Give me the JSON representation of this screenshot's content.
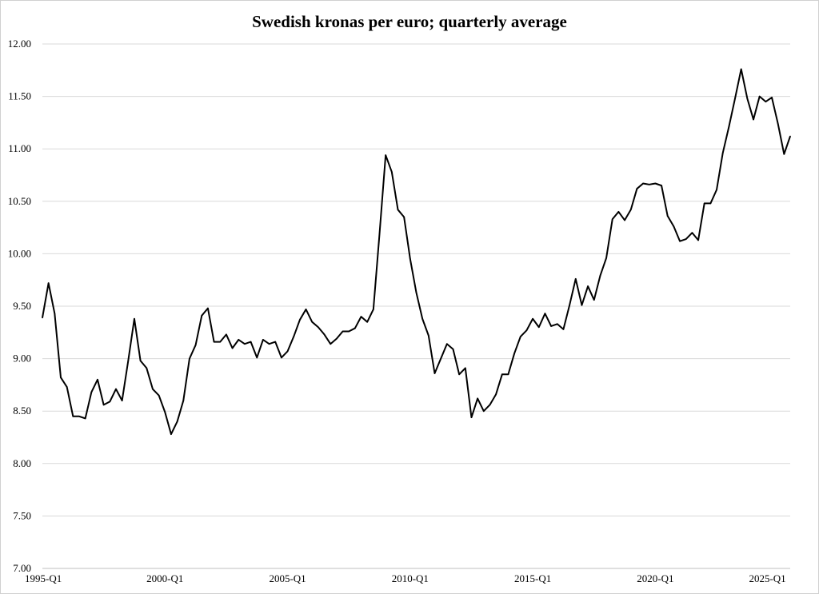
{
  "chart_data": {
    "type": "line",
    "title": "Swedish kronas per euro; quarterly average",
    "xlabel": "",
    "ylabel": "",
    "ylim": [
      7.0,
      12.0
    ],
    "yticks": [
      "7.00",
      "7.50",
      "8.00",
      "8.50",
      "9.00",
      "9.50",
      "10.00",
      "10.50",
      "11.00",
      "11.50",
      "12.00"
    ],
    "xticks": [
      "1995-Q1",
      "2000-Q1",
      "2005-Q1",
      "2010-Q1",
      "2015-Q1",
      "2020-Q1",
      "2025-Q1"
    ],
    "grid": "horizontal",
    "line_color": "#000000",
    "x": [
      "1995-Q1",
      "1995-Q2",
      "1995-Q3",
      "1995-Q4",
      "1996-Q1",
      "1996-Q2",
      "1996-Q3",
      "1996-Q4",
      "1997-Q1",
      "1997-Q2",
      "1997-Q3",
      "1997-Q4",
      "1998-Q1",
      "1998-Q2",
      "1998-Q3",
      "1998-Q4",
      "1999-Q1",
      "1999-Q2",
      "1999-Q3",
      "1999-Q4",
      "2000-Q1",
      "2000-Q2",
      "2000-Q3",
      "2000-Q4",
      "2001-Q1",
      "2001-Q2",
      "2001-Q3",
      "2001-Q4",
      "2002-Q1",
      "2002-Q2",
      "2002-Q3",
      "2002-Q4",
      "2003-Q1",
      "2003-Q2",
      "2003-Q3",
      "2003-Q4",
      "2004-Q1",
      "2004-Q2",
      "2004-Q3",
      "2004-Q4",
      "2005-Q1",
      "2005-Q2",
      "2005-Q3",
      "2005-Q4",
      "2006-Q1",
      "2006-Q2",
      "2006-Q3",
      "2006-Q4",
      "2007-Q1",
      "2007-Q2",
      "2007-Q3",
      "2007-Q4",
      "2008-Q1",
      "2008-Q2",
      "2008-Q3",
      "2008-Q4",
      "2009-Q1",
      "2009-Q2",
      "2009-Q3",
      "2009-Q4",
      "2010-Q1",
      "2010-Q2",
      "2010-Q3",
      "2010-Q4",
      "2011-Q1",
      "2011-Q2",
      "2011-Q3",
      "2011-Q4",
      "2012-Q1",
      "2012-Q2",
      "2012-Q3",
      "2012-Q4",
      "2013-Q1",
      "2013-Q2",
      "2013-Q3",
      "2013-Q4",
      "2014-Q1",
      "2014-Q2",
      "2014-Q3",
      "2014-Q4",
      "2015-Q1",
      "2015-Q2",
      "2015-Q3",
      "2015-Q4",
      "2016-Q1",
      "2016-Q2",
      "2016-Q3",
      "2016-Q4",
      "2017-Q1",
      "2017-Q2",
      "2017-Q3",
      "2017-Q4",
      "2018-Q1",
      "2018-Q2",
      "2018-Q3",
      "2018-Q4",
      "2019-Q1",
      "2019-Q2",
      "2019-Q3",
      "2019-Q4",
      "2020-Q1",
      "2020-Q2",
      "2020-Q3",
      "2020-Q4",
      "2021-Q1",
      "2021-Q2",
      "2021-Q3",
      "2021-Q4",
      "2022-Q1",
      "2022-Q2",
      "2022-Q3",
      "2022-Q4",
      "2023-Q1",
      "2023-Q2",
      "2023-Q3",
      "2023-Q4",
      "2024-Q1",
      "2024-Q2",
      "2024-Q3",
      "2024-Q4",
      "2025-Q1",
      "2025-Q2",
      "2025-Q3"
    ],
    "series": [
      {
        "values": [
          9.39,
          9.72,
          9.43,
          8.82,
          8.73,
          8.45,
          8.45,
          8.43,
          8.68,
          8.8,
          8.56,
          8.59,
          8.71,
          8.6,
          8.98,
          9.38,
          8.98,
          8.91,
          8.71,
          8.65,
          8.49,
          8.28,
          8.4,
          8.6,
          9.0,
          9.13,
          9.41,
          9.48,
          9.16,
          9.16,
          9.23,
          9.1,
          9.18,
          9.14,
          9.16,
          9.01,
          9.18,
          9.14,
          9.16,
          9.01,
          9.07,
          9.21,
          9.37,
          9.47,
          9.35,
          9.3,
          9.23,
          9.14,
          9.19,
          9.26,
          9.26,
          9.29,
          9.4,
          9.35,
          9.47,
          10.19,
          10.94,
          10.78,
          10.42,
          10.35,
          9.95,
          9.63,
          9.38,
          9.22,
          8.86,
          9.0,
          9.14,
          9.09,
          8.85,
          8.91,
          8.44,
          8.62,
          8.5,
          8.56,
          8.66,
          8.85,
          8.85,
          9.05,
          9.21,
          9.27,
          9.38,
          9.3,
          9.43,
          9.31,
          9.33,
          9.28,
          9.51,
          9.76,
          9.51,
          9.69,
          9.56,
          9.79,
          9.96,
          10.33,
          10.4,
          10.32,
          10.42,
          10.62,
          10.67,
          10.66,
          10.67,
          10.65,
          10.36,
          10.26,
          10.12,
          10.14,
          10.2,
          10.13,
          10.48,
          10.48,
          10.61,
          10.96,
          11.21,
          11.48,
          11.76,
          11.48,
          11.28,
          11.5,
          11.45,
          11.49,
          11.24,
          10.95,
          11.12
        ]
      }
    ]
  }
}
